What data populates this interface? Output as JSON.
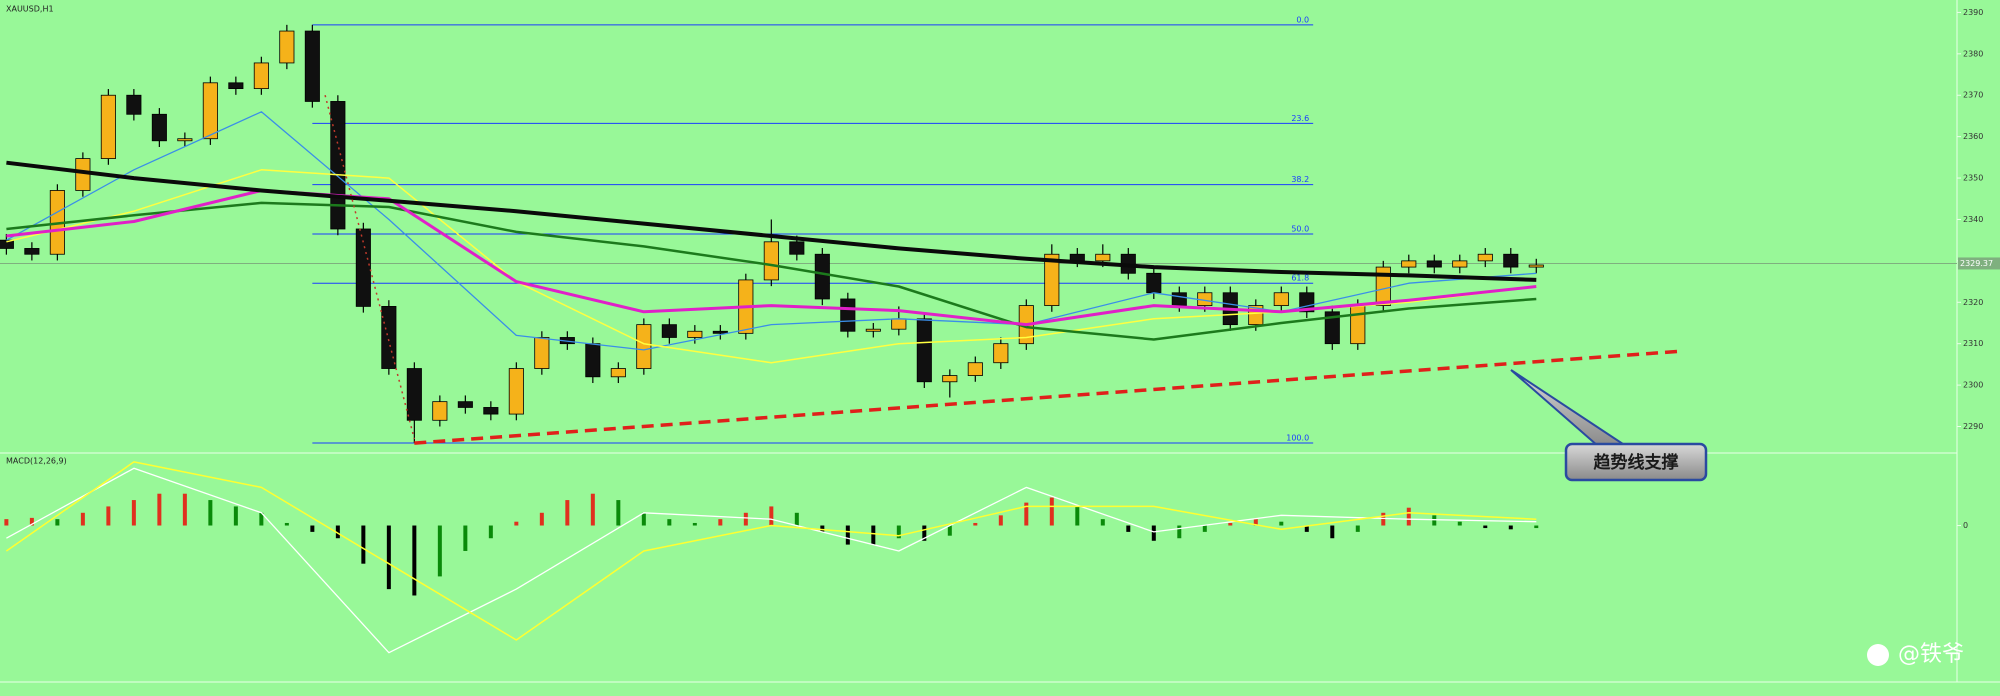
{
  "chart_data": [
    {
      "type": "candlestick",
      "title": "XAUUSD,H1",
      "annotation": "趋势线支撑",
      "xlim": [
        -0.25,
        76.5
      ],
      "ylim": [
        2283.6,
        2393
      ],
      "yticks": [
        2290,
        2300,
        2310,
        2320,
        2330,
        2340,
        2350,
        2360,
        2370,
        2380,
        2390
      ],
      "up_color": "#f5b21a",
      "down_color": "#101010",
      "open": [
        2335,
        2333,
        2331.6,
        2347,
        2354.7,
        2370,
        2365.4,
        2359,
        2359.5,
        2373,
        2371.6,
        2377.8,
        2385.5,
        2368.5,
        2337.7,
        2319,
        2304,
        2291.5,
        2296,
        2294.6,
        2293,
        2304,
        2311.5,
        2310,
        2302,
        2304,
        2314.6,
        2311.5,
        2313,
        2312.5,
        2325.4,
        2334.6,
        2331.6,
        2320.8,
        2313,
        2313.5,
        2316,
        2300.8,
        2302.3,
        2305.4,
        2310,
        2319.2,
        2331.6,
        2330,
        2331.6,
        2327,
        2322.3,
        2319.2,
        2322.3,
        2314.6,
        2319.2,
        2322.3,
        2317.7,
        2310,
        2319.2,
        2328.5,
        2330,
        2328.5,
        2330,
        2331.6,
        2328.5
      ],
      "high": [
        2336.5,
        2334.5,
        2348.5,
        2356.2,
        2371.5,
        2371.5,
        2366.9,
        2361,
        2374.5,
        2374.5,
        2379.3,
        2387,
        2387,
        2370,
        2339.2,
        2320.5,
        2305.5,
        2297.5,
        2297.5,
        2296.1,
        2305.5,
        2313,
        2313,
        2311.5,
        2305.5,
        2316.1,
        2316.1,
        2314.5,
        2314.5,
        2326.9,
        2340,
        2336.1,
        2333.1,
        2322.3,
        2315,
        2319,
        2317.5,
        2303.8,
        2306.9,
        2311.5,
        2320.7,
        2334,
        2333.1,
        2334,
        2333.1,
        2328.5,
        2323.8,
        2323.8,
        2323.8,
        2320.7,
        2323.8,
        2323.8,
        2319.2,
        2320.7,
        2330,
        2331.5,
        2331.5,
        2331.5,
        2333.1,
        2333.1,
        2330.5
      ],
      "low": [
        2331.5,
        2330.1,
        2330.1,
        2345.5,
        2353.2,
        2363.9,
        2357.5,
        2357.5,
        2358,
        2370.1,
        2370.1,
        2376.3,
        2367,
        2336.2,
        2317.5,
        2302.5,
        2286,
        2290,
        2293.1,
        2291.5,
        2291.5,
        2302.5,
        2308.5,
        2300.5,
        2300.5,
        2302.5,
        2310,
        2310,
        2311,
        2311,
        2323.9,
        2330.1,
        2319.3,
        2311.5,
        2311.5,
        2312,
        2299.3,
        2297,
        2300.8,
        2303.9,
        2308.5,
        2317.7,
        2328.5,
        2328.5,
        2325.5,
        2320.8,
        2317.7,
        2317.7,
        2313.1,
        2313.1,
        2317.7,
        2316.2,
        2308.5,
        2308.5,
        2317.7,
        2327,
        2327,
        2327,
        2328.5,
        2327,
        2327
      ],
      "close": [
        2333,
        2331.6,
        2347,
        2354.7,
        2370,
        2365.4,
        2359,
        2359.5,
        2373,
        2371.6,
        2377.8,
        2385.5,
        2368.5,
        2337.7,
        2319,
        2304,
        2291.5,
        2296,
        2294.6,
        2293,
        2304,
        2311.5,
        2310,
        2302,
        2304,
        2314.6,
        2311.5,
        2313,
        2312.5,
        2325.4,
        2334.6,
        2331.6,
        2320.8,
        2313,
        2313.5,
        2316,
        2300.8,
        2302.3,
        2305.4,
        2310,
        2319.2,
        2331.6,
        2330,
        2331.6,
        2327,
        2322.3,
        2319.2,
        2322.3,
        2314.6,
        2319.2,
        2322.3,
        2317.7,
        2310,
        2319.2,
        2328.5,
        2330,
        2328.5,
        2330,
        2331.6,
        2328.5,
        2329
      ],
      "lines": [
        {
          "color": "#3a8ee8",
          "width": 1.3,
          "x": [
            0,
            5,
            10,
            15,
            20,
            25,
            30,
            35,
            40,
            45,
            50,
            55,
            60
          ],
          "values": [
            2335,
            2352,
            2366,
            2340,
            2312,
            2308.5,
            2314.6,
            2316,
            2314.6,
            2322.3,
            2317.7,
            2324.6,
            2327
          ]
        },
        {
          "color": "#ffff40",
          "width": 1.5,
          "x": [
            0,
            5,
            10,
            15,
            20,
            25,
            30,
            35,
            40,
            45,
            50,
            55,
            60
          ],
          "values": [
            2334.6,
            2342,
            2352,
            2350,
            2325,
            2310,
            2305.4,
            2310,
            2311.5,
            2316,
            2317.7,
            2320,
            2323.8
          ]
        },
        {
          "color": "#1c7a1c",
          "width": 2.5,
          "x": [
            0,
            5,
            10,
            15,
            20,
            25,
            30,
            35,
            40,
            45,
            50,
            55,
            60
          ],
          "values": [
            2337.7,
            2341,
            2344,
            2343,
            2337,
            2333.5,
            2329,
            2323.8,
            2314,
            2311,
            2315,
            2318.5,
            2320.8
          ]
        },
        {
          "color": "#e020c8",
          "width": 3,
          "x": [
            0,
            5,
            10,
            15,
            20,
            25,
            30,
            35,
            40,
            45,
            50,
            55,
            60
          ],
          "values": [
            2336,
            2339.5,
            2347,
            2345,
            2325,
            2317.7,
            2319.2,
            2318,
            2314.6,
            2319.2,
            2317.7,
            2320.5,
            2323.8
          ]
        },
        {
          "color": "#0a0a0a",
          "width": 4,
          "x": [
            0,
            5,
            10,
            15,
            20,
            25,
            30,
            35,
            40,
            45,
            50,
            55,
            60
          ],
          "values": [
            2353.7,
            2350,
            2347,
            2344.5,
            2342,
            2339,
            2336,
            2333,
            2330.5,
            2328.5,
            2327.3,
            2326.5,
            2325.4
          ]
        },
        {
          "color": "#c0392b",
          "width": 1.5,
          "dash": "2 4",
          "x": [
            12.5,
            16
          ],
          "values": [
            2370,
            2287
          ]
        },
        {
          "color": "#e0201b",
          "width": 3.5,
          "dash": "12 7",
          "x": [
            16,
            65.75
          ],
          "values": [
            2286,
            2308.2
          ]
        }
      ],
      "fib_color": "#1a3cff",
      "fib_x": [
        12,
        51.25
      ],
      "fib_levels": [
        {
          "value": 2387,
          "label": "0.0"
        },
        {
          "value": 2363.2,
          "label": "23.6"
        },
        {
          "value": 2348.4,
          "label": "38.2"
        },
        {
          "value": 2336.5,
          "label": "50.0"
        },
        {
          "value": 2324.6,
          "label": "61.8"
        },
        {
          "value": 2286,
          "label": "100.0"
        }
      ],
      "last_price": 2329.37
    },
    {
      "type": "macd",
      "title": "MACD(12,26,9)",
      "xlim": [
        -0.25,
        76.5
      ],
      "ylim": [
        -12.3,
        5.7
      ],
      "yticks": [
        0
      ],
      "hist_colors": {
        "rise": "#e0301e",
        "fall": "#0a8a0a",
        "neg": "#000000"
      },
      "values": [
        0.5,
        0.6,
        0.5,
        1,
        1.5,
        2,
        2.5,
        2.5,
        2,
        1.5,
        1,
        0.2,
        -0.5,
        -1,
        -3,
        -5,
        -5.5,
        -4,
        -2,
        -1,
        0.3,
        1,
        2,
        2.5,
        2,
        1,
        0.5,
        0.2,
        0.5,
        1,
        1.5,
        1,
        -0.5,
        -1.5,
        -1.5,
        -1,
        -1.2,
        -0.8,
        0.2,
        0.8,
        1.8,
        2.2,
        1.5,
        0.5,
        -0.5,
        -1.2,
        -1,
        -0.5,
        0.2,
        0.5,
        0.3,
        -0.5,
        -1,
        -0.5,
        1,
        1.4,
        0.8,
        0.3,
        -0.2,
        -0.3,
        -0.2
      ],
      "lines": [
        {
          "color": "#ffffff",
          "width": 1.3,
          "x": [
            0,
            5,
            10,
            15,
            20,
            25,
            30,
            35,
            40,
            45,
            50,
            55,
            60
          ],
          "values": [
            -1,
            4.5,
            1,
            -10,
            -5,
            1,
            0.5,
            -2,
            3,
            -0.5,
            0.8,
            0.5,
            0.3
          ]
        },
        {
          "color": "#ffff30",
          "width": 1.5,
          "x": [
            0,
            5,
            10,
            15,
            20,
            25,
            30,
            35,
            40,
            45,
            50,
            55,
            60
          ],
          "values": [
            -2,
            5,
            3,
            -3,
            -9,
            -2,
            0,
            -0.8,
            1.5,
            1.5,
            -0.3,
            1,
            0.5
          ]
        }
      ]
    }
  ],
  "watermark": "@铁爷"
}
